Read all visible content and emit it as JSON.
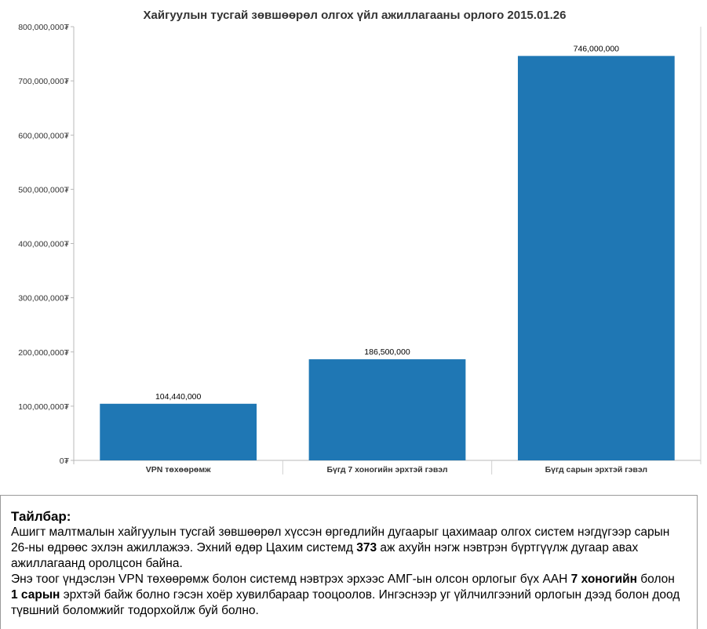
{
  "chart_data": {
    "type": "bar",
    "title": "Хайгуулын тусгай зөвшөөрөл олгох үйл ажиллагааны орлого 2015.01.26",
    "xlabel": "",
    "ylabel": "",
    "categories": [
      "VPN төхөөрөмж",
      "Бүгд 7 хоногийн эрхтэй гэвэл",
      "Бүгд сарын эрхтэй гэвэл"
    ],
    "values": [
      104440000,
      186500000,
      746000000
    ],
    "value_labels": [
      "104,440,000",
      "186,500,000",
      "746,000,000"
    ],
    "ylim": [
      0,
      800000000
    ],
    "yticks": [
      0,
      100000000,
      200000000,
      300000000,
      400000000,
      500000000,
      600000000,
      700000000,
      800000000
    ],
    "ytick_labels": [
      "0₮",
      "100,000,000₮",
      "200,000,000₮",
      "300,000,000₮",
      "400,000,000₮",
      "500,000,000₮",
      "600,000,000₮",
      "700,000,000₮",
      "800,000,000₮"
    ],
    "grid": false,
    "legend": "none",
    "bar_color": "#1f77b4"
  },
  "note": {
    "heading": "Тайлбар:",
    "p1_a": "Ашигт малтмалын хайгуулын тусгай зөвшөөрөл хүссэн өргөдлийн дугаарыг цахимаар олгох систем нэгдүгээр сарын 26-ны өдрөөс эхлэн ажиллажээ. Эхний өдөр Цахим системд ",
    "p1_b": "373",
    "p1_c": " аж ахуйн нэгж нэвтрэн бүртгүүлж дугаар авах ажиллагаанд оролцсон байна.",
    "p2_a": "Энэ тоог үндэслэн VPN төхөөрөмж болон системд нэвтрэх эрхээс АМГ-ын олсон орлогыг бүх ААН ",
    "p2_b": "7 хоногийн",
    "p2_c": " болон ",
    "p2_d": "1 сарын",
    "p2_e": " эрхтэй байж болно гэсэн хоёр хувилбараар тооцоолов. Ингэснээр уг үйлчилгээний орлогын дээд болон доод түвшний боломжийг тодорхойлж буй болно."
  }
}
